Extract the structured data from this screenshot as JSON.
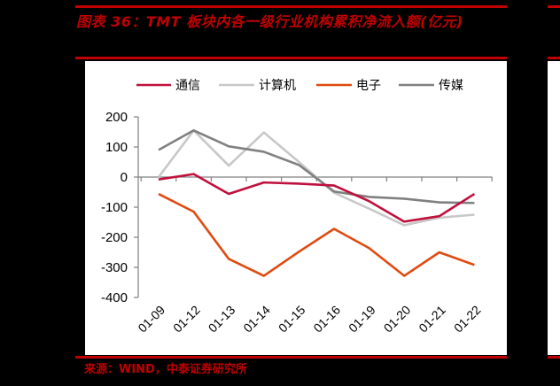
{
  "header": {
    "title": "图表 36：TMT 板块内各一级行业机构累积净流入额(亿元)"
  },
  "footer": {
    "source": "来源：WIND，中泰证券研究所"
  },
  "colors": {
    "brand_red": "#c00000",
    "通信": "#c0103c",
    "计算机": "#c8c8c8",
    "电子": "#e04a10",
    "传媒": "#808080"
  },
  "chart_data": {
    "type": "line",
    "title": "TMT 板块内各一级行业机构累积净流入额(亿元)",
    "xlabel": "",
    "ylabel": "",
    "ylim": [
      -400,
      200
    ],
    "yticks": [
      200,
      100,
      0,
      -100,
      -200,
      -300,
      -400
    ],
    "categories": [
      "01-09",
      "01-12",
      "01-13",
      "01-14",
      "01-15",
      "01-16",
      "01-19",
      "01-20",
      "01-21",
      "01-22"
    ],
    "legend_position": "top",
    "grid": false,
    "series": [
      {
        "name": "通信",
        "color": "#c0103c",
        "values": [
          -8,
          10,
          -56,
          -18,
          -22,
          -28,
          -80,
          -148,
          -130,
          -56
        ]
      },
      {
        "name": "计算机",
        "color": "#c8c8c8",
        "values": [
          0,
          155,
          38,
          148,
          50,
          -52,
          -105,
          -160,
          -135,
          -125
        ]
      },
      {
        "name": "电子",
        "color": "#e04a10",
        "values": [
          -56,
          -115,
          -272,
          -328,
          -248,
          -172,
          -236,
          -328,
          -250,
          -292
        ]
      },
      {
        "name": "传媒",
        "color": "#808080",
        "values": [
          90,
          155,
          102,
          84,
          40,
          -48,
          -66,
          -72,
          -84,
          -86
        ]
      }
    ]
  }
}
